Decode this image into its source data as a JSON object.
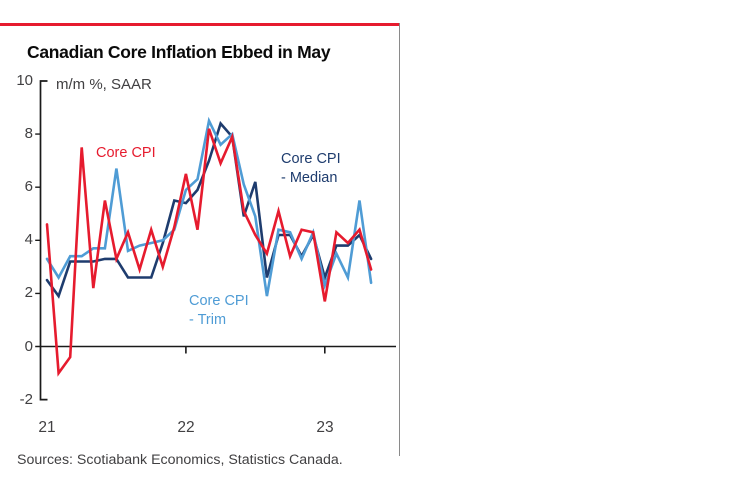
{
  "title": "Canadian Core Inflation Ebbed in May",
  "source_line": "Sources: Scotiabank Economics, Statistics Canada.",
  "colors": {
    "accent_rule": "#e61b2e",
    "divider": "#8a8a8a",
    "axis": "#1a1a1a",
    "tick_label": "#414042",
    "core_cpi": "#e61b2e",
    "median": "#1e3c6e",
    "trim": "#4f9cd5"
  },
  "chart_data": {
    "type": "line",
    "title": "Canadian Core Inflation Ebbed in May",
    "ylabel_note": "m/m %, SAAR",
    "ylim": [
      -2,
      10
    ],
    "y_ticks": [
      "10",
      "8",
      "6",
      "4",
      "2",
      "0",
      "-2"
    ],
    "y_tick_values": [
      10,
      8,
      6,
      4,
      2,
      0,
      -2
    ],
    "x_tick_labels": [
      "21",
      "22",
      "23"
    ],
    "x_tick_month_indices": [
      0,
      12,
      24
    ],
    "grid": "zero-line-only",
    "legend_position": "inline-annotations",
    "categories": [
      "2021-01",
      "2021-02",
      "2021-03",
      "2021-04",
      "2021-05",
      "2021-06",
      "2021-07",
      "2021-08",
      "2021-09",
      "2021-10",
      "2021-11",
      "2021-12",
      "2022-01",
      "2022-02",
      "2022-03",
      "2022-04",
      "2022-05",
      "2022-06",
      "2022-07",
      "2022-08",
      "2022-09",
      "2022-10",
      "2022-11",
      "2022-12",
      "2023-01",
      "2023-02",
      "2023-03",
      "2023-04",
      "2023-05"
    ],
    "series": [
      {
        "name": "Core CPI - Median",
        "color_key": "median",
        "values": [
          2.5,
          1.9,
          3.2,
          3.2,
          3.2,
          3.3,
          3.3,
          2.6,
          2.6,
          2.6,
          3.9,
          5.5,
          5.4,
          5.9,
          7.0,
          8.4,
          7.9,
          4.9,
          6.2,
          2.6,
          4.2,
          4.2,
          3.4,
          4.2,
          2.6,
          3.8,
          3.8,
          4.2,
          3.3
        ]
      },
      {
        "name": "Core CPI - Trim",
        "color_key": "trim",
        "values": [
          3.3,
          2.6,
          3.4,
          3.4,
          3.7,
          3.7,
          6.7,
          3.6,
          3.8,
          3.9,
          4.0,
          4.4,
          5.9,
          6.3,
          8.5,
          7.6,
          8.0,
          6.1,
          4.9,
          1.9,
          4.4,
          4.3,
          3.3,
          4.3,
          2.3,
          3.5,
          2.6,
          5.5,
          2.4
        ]
      },
      {
        "name": "Core CPI",
        "color_key": "core_cpi",
        "values": [
          4.6,
          -1.0,
          -0.4,
          7.5,
          2.2,
          5.5,
          3.3,
          4.3,
          2.9,
          4.4,
          3.0,
          4.5,
          6.5,
          4.4,
          8.2,
          6.9,
          7.9,
          5.1,
          4.2,
          3.5,
          5.1,
          3.4,
          4.4,
          4.3,
          1.7,
          4.3,
          3.9,
          4.4,
          2.9
        ]
      }
    ],
    "legend": [
      {
        "label_lines": [
          "Core CPI",
          ""
        ],
        "color_key": "core_cpi"
      },
      {
        "label_lines": [
          "Core CPI",
          "- Median"
        ],
        "color_key": "median"
      },
      {
        "label_lines": [
          "Core CPI",
          "- Trim"
        ],
        "color_key": "trim"
      }
    ]
  }
}
